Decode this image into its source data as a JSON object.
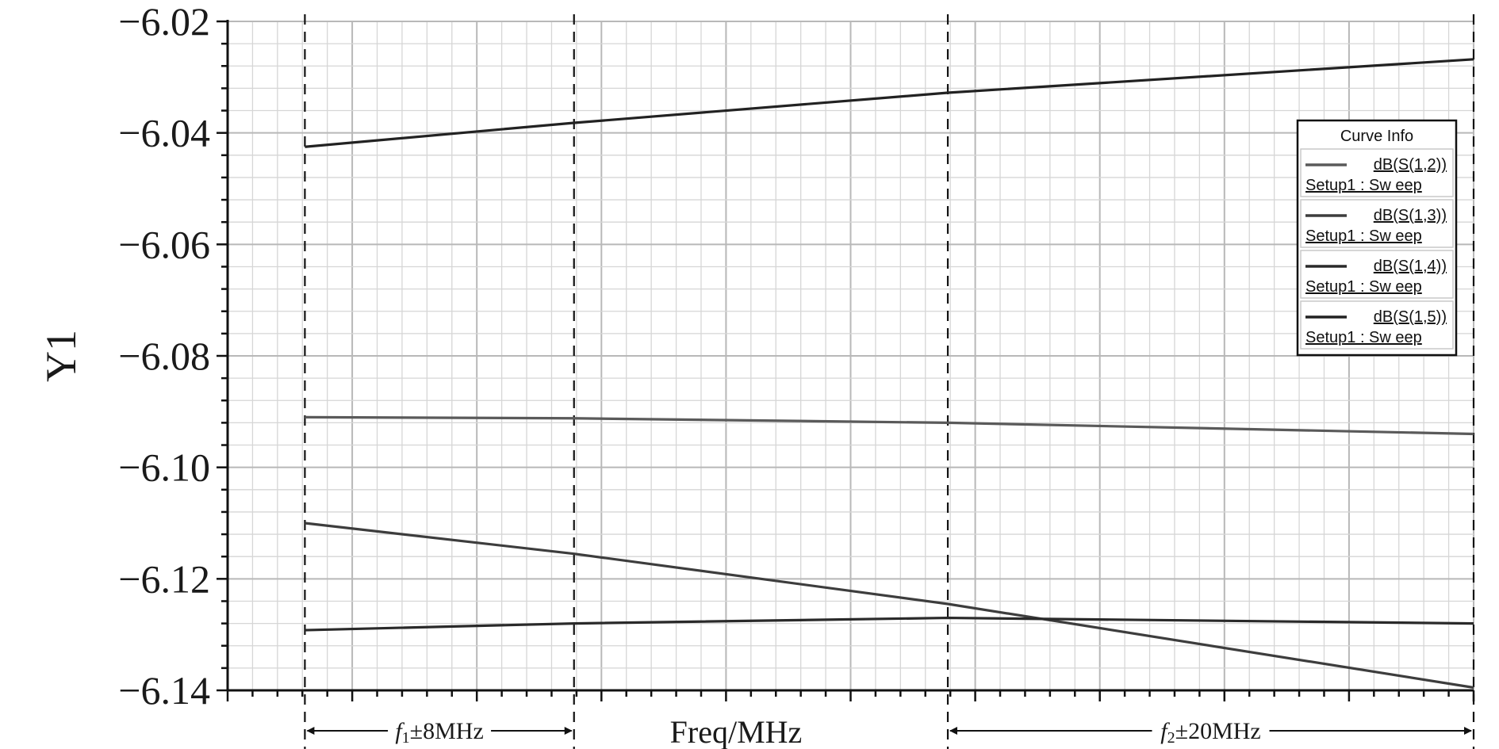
{
  "chart_data": {
    "type": "line",
    "ylabel": "Y1",
    "xlabel": "Freq/MHz",
    "x_tick_labels": [],
    "xlim": [
      0,
      100
    ],
    "ylim": [
      -6.14,
      -6.02
    ],
    "y_ticks": [
      "−6.02",
      "−6.04",
      "−6.06",
      "−6.08",
      "−6.10",
      "−6.12",
      "−6.14"
    ],
    "y_tick_values": [
      -6.02,
      -6.04,
      -6.06,
      -6.08,
      -6.1,
      -6.12,
      -6.14
    ],
    "grid": true,
    "legend": {
      "title": "Curve Info",
      "placement": "top-right",
      "entries": [
        {
          "name": "dB(S(1,2))",
          "sub": "Setup1 : Sw eep"
        },
        {
          "name": "dB(S(1,3))",
          "sub": "Setup1 : Sw eep"
        },
        {
          "name": "dB(S(1,4))",
          "sub": "Setup1 : Sw eep"
        },
        {
          "name": "dB(S(1,5))",
          "sub": "Setup1 : Sw eep"
        }
      ]
    },
    "series": [
      {
        "name": "dB(S(1,2))",
        "color": "#5a5a5a",
        "x": [
          6.2,
          27.8,
          57.8,
          100
        ],
        "y": [
          -6.091,
          -6.0912,
          -6.092,
          -6.094
        ]
      },
      {
        "name": "dB(S(1,3))",
        "color": "#3d3d3d",
        "x": [
          6.2,
          27.8,
          57.8,
          100
        ],
        "y": [
          -6.11,
          -6.1155,
          -6.1245,
          -6.1395
        ]
      },
      {
        "name": "dB(S(1,4))",
        "color": "#2a2a2a",
        "x": [
          6.2,
          27.8,
          57.8,
          100
        ],
        "y": [
          -6.1292,
          -6.128,
          -6.127,
          -6.128
        ]
      },
      {
        "name": "dB(S(1,5))",
        "color": "#222222",
        "x": [
          6.2,
          27.8,
          57.8,
          100
        ],
        "y": [
          -6.0425,
          -6.0382,
          -6.0328,
          -6.0268
        ]
      }
    ],
    "markers": [
      {
        "x": 6.2
      },
      {
        "x": 27.8
      },
      {
        "x": 57.8
      },
      {
        "x": 100
      }
    ],
    "bands": [
      {
        "from": 6.2,
        "to": 27.8,
        "label_italic": "f",
        "label_sub": "1",
        "label_rest": "±8MHz"
      },
      {
        "from": 57.8,
        "to": 100,
        "label_italic": "f",
        "label_sub": "2",
        "label_rest": "±20MHz"
      }
    ]
  }
}
